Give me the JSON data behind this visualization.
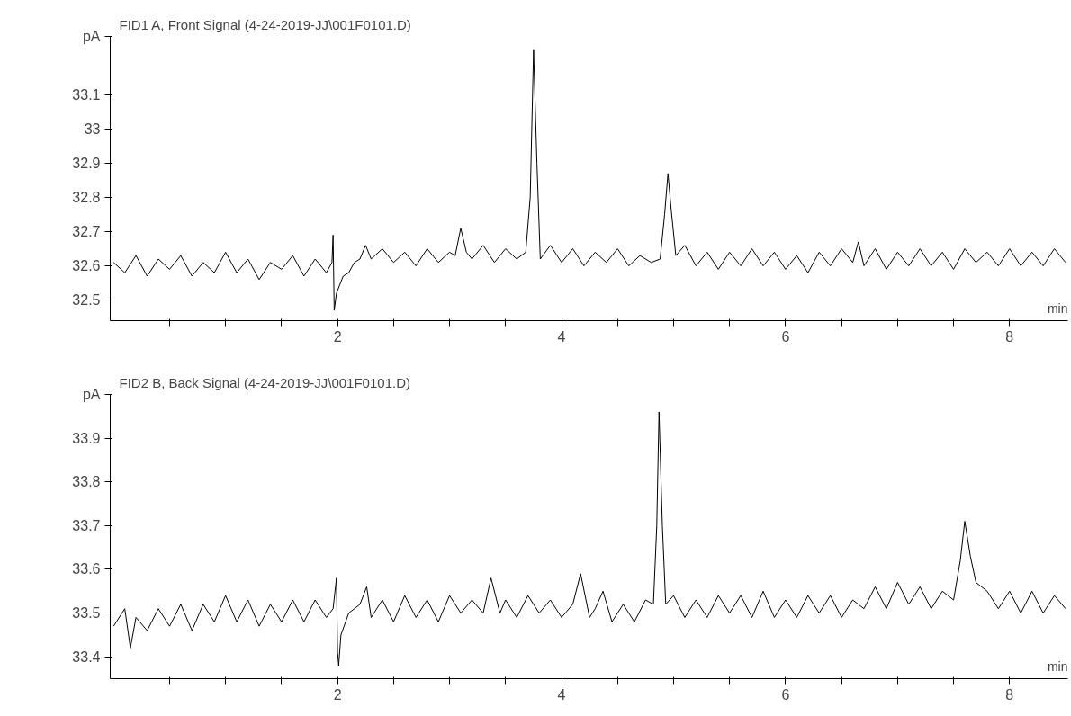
{
  "chart_data": [
    {
      "type": "line",
      "title": "FID1 A, Front Signal (4-24-2019-JJ\\001F0101.D)",
      "xlabel": "min",
      "ylabel": "pA",
      "x": [
        0.0,
        0.1,
        0.2,
        0.3,
        0.4,
        0.5,
        0.6,
        0.7,
        0.8,
        0.9,
        1.0,
        1.1,
        1.2,
        1.3,
        1.4,
        1.5,
        1.6,
        1.7,
        1.8,
        1.9,
        1.95,
        1.96,
        1.97,
        1.99,
        2.05,
        2.1,
        2.15,
        2.2,
        2.25,
        2.3,
        2.4,
        2.5,
        2.6,
        2.7,
        2.8,
        2.9,
        3.0,
        3.05,
        3.1,
        3.15,
        3.2,
        3.3,
        3.4,
        3.5,
        3.6,
        3.68,
        3.72,
        3.75,
        3.78,
        3.81,
        3.9,
        4.0,
        4.1,
        4.2,
        4.3,
        4.4,
        4.5,
        4.6,
        4.7,
        4.8,
        4.88,
        4.92,
        4.95,
        4.98,
        5.02,
        5.1,
        5.2,
        5.3,
        5.4,
        5.5,
        5.6,
        5.7,
        5.8,
        5.9,
        6.0,
        6.1,
        6.2,
        6.3,
        6.4,
        6.5,
        6.6,
        6.65,
        6.7,
        6.8,
        6.9,
        7.0,
        7.1,
        7.2,
        7.3,
        7.4,
        7.5,
        7.6,
        7.7,
        7.8,
        7.9,
        8.0,
        8.1,
        8.2,
        8.3,
        8.4,
        8.5
      ],
      "series": [
        {
          "color": "#000000",
          "values": [
            32.61,
            32.58,
            32.63,
            32.57,
            32.62,
            32.59,
            32.63,
            32.57,
            32.61,
            32.58,
            32.64,
            32.58,
            32.62,
            32.56,
            32.61,
            32.59,
            32.63,
            32.57,
            32.62,
            32.58,
            32.61,
            32.69,
            32.47,
            32.52,
            32.57,
            32.58,
            32.61,
            32.62,
            32.66,
            32.62,
            32.65,
            32.61,
            32.64,
            32.6,
            32.65,
            32.61,
            32.64,
            32.63,
            32.71,
            32.64,
            32.62,
            32.66,
            32.61,
            32.65,
            32.62,
            32.64,
            32.8,
            33.23,
            32.9,
            32.62,
            32.66,
            32.61,
            32.65,
            32.6,
            32.64,
            32.61,
            32.65,
            32.6,
            32.63,
            32.61,
            32.62,
            32.75,
            32.87,
            32.76,
            32.63,
            32.66,
            32.6,
            32.64,
            32.59,
            32.64,
            32.6,
            32.65,
            32.6,
            32.64,
            32.59,
            32.63,
            32.58,
            32.64,
            32.6,
            32.65,
            32.61,
            32.67,
            32.6,
            32.65,
            32.59,
            32.64,
            32.6,
            32.65,
            32.6,
            32.64,
            32.59,
            32.65,
            32.61,
            32.64,
            32.6,
            32.65,
            32.6,
            32.64,
            32.6,
            32.65,
            32.61
          ]
        }
      ],
      "xlim": [
        -0.03,
        8.52
      ],
      "ylim": [
        32.44,
        33.27
      ],
      "xticks": [
        {
          "value": 0.5,
          "label": null
        },
        {
          "value": 1,
          "label": null
        },
        {
          "value": 1.5,
          "label": null
        },
        2,
        {
          "value": 2.5,
          "label": null
        },
        {
          "value": 3,
          "label": null
        },
        {
          "value": 3.5,
          "label": null
        },
        4,
        {
          "value": 4.5,
          "label": null
        },
        {
          "value": 5,
          "label": null
        },
        {
          "value": 5.5,
          "label": null
        },
        6,
        {
          "value": 6.5,
          "label": null
        },
        {
          "value": 7,
          "label": null
        },
        {
          "value": 7.5,
          "label": null
        },
        8
      ],
      "yticks": [
        32.5,
        32.6,
        32.7,
        32.8,
        32.9,
        33,
        33.1
      ],
      "grid": false
    },
    {
      "type": "line",
      "title": "FID2 B, Back Signal (4-24-2019-JJ\\001F0101.D)",
      "xlabel": "min",
      "ylabel": "pA",
      "x": [
        0.0,
        0.1,
        0.15,
        0.2,
        0.3,
        0.4,
        0.5,
        0.6,
        0.7,
        0.8,
        0.9,
        1.0,
        1.1,
        1.2,
        1.3,
        1.4,
        1.5,
        1.6,
        1.7,
        1.8,
        1.9,
        1.96,
        1.99,
        2.0,
        2.01,
        2.03,
        2.1,
        2.2,
        2.26,
        2.3,
        2.4,
        2.5,
        2.6,
        2.7,
        2.8,
        2.9,
        3.0,
        3.1,
        3.2,
        3.3,
        3.37,
        3.45,
        3.5,
        3.6,
        3.7,
        3.8,
        3.9,
        4.0,
        4.1,
        4.17,
        4.25,
        4.3,
        4.37,
        4.45,
        4.55,
        4.65,
        4.75,
        4.82,
        4.85,
        4.87,
        4.9,
        4.93,
        5.0,
        5.1,
        5.2,
        5.3,
        5.4,
        5.5,
        5.6,
        5.7,
        5.8,
        5.9,
        6.0,
        6.1,
        6.2,
        6.3,
        6.4,
        6.5,
        6.6,
        6.7,
        6.8,
        6.9,
        7.0,
        7.1,
        7.2,
        7.3,
        7.4,
        7.5,
        7.56,
        7.6,
        7.65,
        7.7,
        7.8,
        7.9,
        8.0,
        8.1,
        8.2,
        8.3,
        8.4,
        8.5
      ],
      "series": [
        {
          "color": "#000000",
          "values": [
            33.47,
            33.51,
            33.42,
            33.49,
            33.46,
            33.51,
            33.47,
            33.52,
            33.46,
            33.52,
            33.48,
            33.54,
            33.48,
            33.53,
            33.47,
            33.52,
            33.48,
            33.53,
            33.48,
            33.53,
            33.49,
            33.51,
            33.58,
            33.41,
            33.38,
            33.45,
            33.5,
            33.52,
            33.56,
            33.49,
            33.53,
            33.48,
            33.54,
            33.49,
            33.53,
            33.48,
            33.54,
            33.5,
            33.53,
            33.5,
            33.58,
            33.5,
            33.53,
            33.49,
            33.54,
            33.5,
            33.53,
            33.49,
            33.52,
            33.59,
            33.49,
            33.51,
            33.55,
            33.48,
            33.52,
            33.48,
            33.53,
            33.52,
            33.7,
            33.96,
            33.7,
            33.52,
            33.54,
            33.49,
            33.53,
            33.49,
            33.54,
            33.5,
            33.54,
            33.49,
            33.55,
            33.49,
            33.53,
            33.49,
            33.54,
            33.5,
            33.54,
            33.49,
            33.53,
            33.51,
            33.56,
            33.51,
            33.57,
            33.52,
            33.56,
            33.51,
            33.55,
            33.53,
            33.62,
            33.71,
            33.63,
            33.57,
            33.55,
            33.51,
            33.55,
            33.5,
            33.55,
            33.5,
            33.54,
            33.51
          ]
        }
      ],
      "xlim": [
        -0.03,
        8.52
      ],
      "ylim": [
        33.35,
        34.0
      ],
      "xticks": [
        {
          "value": 0.5,
          "label": null
        },
        {
          "value": 1,
          "label": null
        },
        {
          "value": 1.5,
          "label": null
        },
        2,
        {
          "value": 2.5,
          "label": null
        },
        {
          "value": 3,
          "label": null
        },
        {
          "value": 3.5,
          "label": null
        },
        4,
        {
          "value": 4.5,
          "label": null
        },
        {
          "value": 5,
          "label": null
        },
        {
          "value": 5.5,
          "label": null
        },
        6,
        {
          "value": 6.5,
          "label": null
        },
        {
          "value": 7,
          "label": null
        },
        {
          "value": 7.5,
          "label": null
        },
        8
      ],
      "yticks": [
        33.4,
        33.5,
        33.6,
        33.7,
        33.8,
        33.9
      ],
      "grid": false
    }
  ]
}
